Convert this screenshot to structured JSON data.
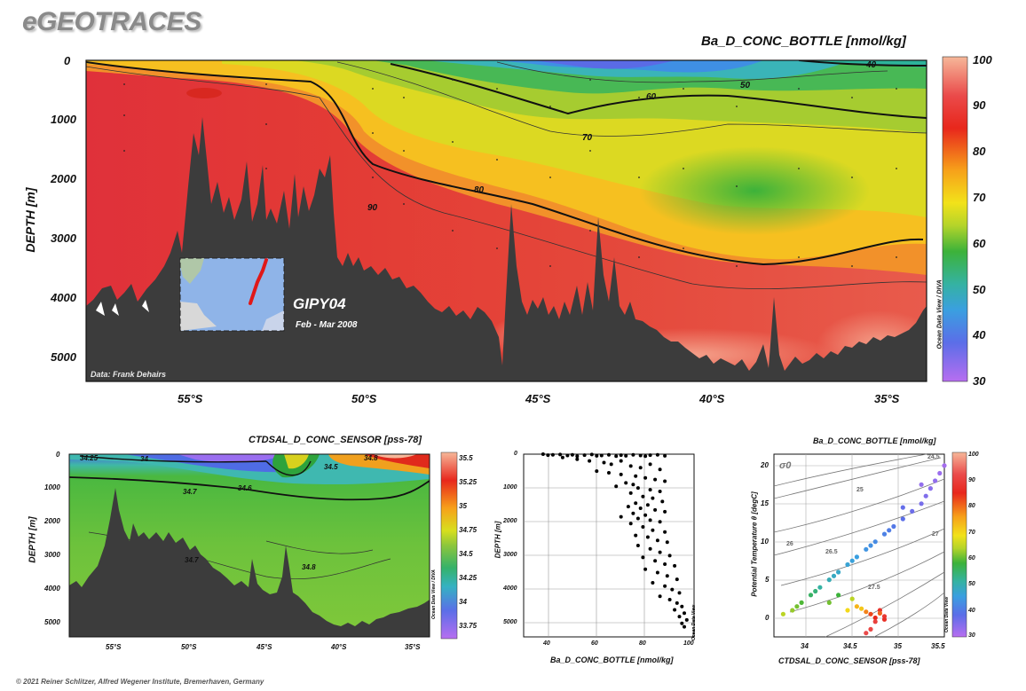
{
  "brand": "eGEOTRACES",
  "copyright": "© 2021 Reiner Schlitzer, Alfred Wegener Institute, Bremerhaven, Germany",
  "colors": {
    "land": "#3c3c3c",
    "contour": "#111111"
  },
  "chart_data": [
    {
      "type": "heatmap",
      "id": "main-section",
      "title": "Ba_D_CONC_BOTTLE [nmol/kg]",
      "ylabel": "DEPTH [m]",
      "x_ticks": [
        "55°S",
        "50°S",
        "45°S",
        "40°S",
        "35°S"
      ],
      "y_ticks": [
        "0",
        "1000",
        "2000",
        "3000",
        "4000",
        "5000"
      ],
      "y_range": [
        0,
        5400
      ],
      "colorbar_ticks": [
        "100",
        "90",
        "80",
        "70",
        "60",
        "50",
        "40",
        "30"
      ],
      "colorbar_range": [
        30,
        100
      ],
      "contour_labels": [
        "40",
        "50",
        "60",
        "70",
        "80",
        "90"
      ],
      "credit": "Data: Frank Dehairs",
      "watermark": "Ocean Data View / DIVA",
      "inset": {
        "title": "GIPY04",
        "subtitle": "Feb - Mar 2008"
      }
    },
    {
      "type": "heatmap",
      "id": "salinity-section",
      "title": "CTDSAL_D_CONC_SENSOR [pss-78]",
      "ylabel": "DEPTH [m]",
      "x_ticks": [
        "55°S",
        "50°S",
        "45°S",
        "40°S",
        "35°S"
      ],
      "y_ticks": [
        "0",
        "1000",
        "2000",
        "3000",
        "4000",
        "5000"
      ],
      "colorbar_ticks": [
        "35.5",
        "35.25",
        "35",
        "34.75",
        "34.5",
        "34.25",
        "34",
        "33.75"
      ],
      "colorbar_range": [
        33.7,
        35.55
      ],
      "contour_labels": [
        "34.25",
        "34",
        "34.8",
        "34.7",
        "34.5",
        "34.6",
        "34.7",
        "34.8"
      ],
      "watermark": "Ocean Data View / DIVA"
    },
    {
      "type": "scatter",
      "id": "profile",
      "xlabel": "Ba_D_CONC_BOTTLE [nmol/kg]",
      "ylabel": "DEPTH [m]",
      "xlim": [
        30,
        100
      ],
      "ylim": [
        5400,
        0
      ],
      "x_ticks": [
        "40",
        "60",
        "80",
        "100"
      ],
      "y_ticks": [
        "0",
        "1000",
        "2000",
        "3000",
        "4000",
        "5000"
      ],
      "watermark": "Ocean Data View",
      "points": [
        [
          38,
          0
        ],
        [
          40,
          30
        ],
        [
          42,
          20
        ],
        [
          45,
          10
        ],
        [
          48,
          40
        ],
        [
          50,
          20
        ],
        [
          52,
          60
        ],
        [
          55,
          30
        ],
        [
          58,
          10
        ],
        [
          60,
          50
        ],
        [
          62,
          40
        ],
        [
          65,
          20
        ],
        [
          68,
          60
        ],
        [
          70,
          30
        ],
        [
          72,
          50
        ],
        [
          75,
          20
        ],
        [
          78,
          40
        ],
        [
          80,
          60
        ],
        [
          82,
          30
        ],
        [
          85,
          20
        ],
        [
          88,
          50
        ],
        [
          46,
          100
        ],
        [
          52,
          150
        ],
        [
          57,
          200
        ],
        [
          63,
          250
        ],
        [
          66,
          300
        ],
        [
          70,
          200
        ],
        [
          74,
          350
        ],
        [
          78,
          400
        ],
        [
          82,
          300
        ],
        [
          86,
          450
        ],
        [
          60,
          500
        ],
        [
          65,
          550
        ],
        [
          70,
          600
        ],
        [
          76,
          650
        ],
        [
          80,
          700
        ],
        [
          84,
          750
        ],
        [
          88,
          800
        ],
        [
          72,
          850
        ],
        [
          75,
          900
        ],
        [
          68,
          950
        ],
        [
          77,
          1000
        ],
        [
          82,
          1050
        ],
        [
          86,
          1100
        ],
        [
          74,
          1150
        ],
        [
          79,
          1250
        ],
        [
          83,
          1300
        ],
        [
          87,
          1400
        ],
        [
          76,
          1450
        ],
        [
          81,
          1500
        ],
        [
          73,
          1550
        ],
        [
          78,
          1600
        ],
        [
          84,
          1650
        ],
        [
          88,
          1700
        ],
        [
          75,
          1750
        ],
        [
          80,
          1800
        ],
        [
          70,
          1850
        ],
        [
          77,
          1900
        ],
        [
          82,
          1950
        ],
        [
          86,
          2000
        ],
        [
          74,
          2050
        ],
        [
          79,
          2150
        ],
        [
          83,
          2250
        ],
        [
          88,
          2300
        ],
        [
          76,
          2400
        ],
        [
          81,
          2450
        ],
        [
          85,
          2550
        ],
        [
          89,
          2600
        ],
        [
          77,
          2700
        ],
        [
          82,
          2800
        ],
        [
          86,
          2900
        ],
        [
          90,
          3000
        ],
        [
          79,
          3050
        ],
        [
          84,
          3150
        ],
        [
          88,
          3250
        ],
        [
          92,
          3300
        ],
        [
          80,
          3400
        ],
        [
          85,
          3500
        ],
        [
          89,
          3600
        ],
        [
          93,
          3700
        ],
        [
          83,
          3800
        ],
        [
          88,
          3900
        ],
        [
          91,
          4000
        ],
        [
          94,
          4100
        ],
        [
          86,
          4200
        ],
        [
          90,
          4300
        ],
        [
          93,
          4400
        ],
        [
          95,
          4500
        ],
        [
          92,
          4600
        ],
        [
          96,
          4700
        ],
        [
          94,
          4800
        ],
        [
          97,
          4900
        ],
        [
          95,
          5000
        ],
        [
          96,
          5100
        ]
      ]
    },
    {
      "type": "scatter",
      "id": "ts-diagram",
      "title": "Ba_D_CONC_BOTTLE [nmol/kg]",
      "xlabel": "CTDSAL_D_CONC_SENSOR [pss-78]",
      "ylabel": "Potential Temperature θ [degC]",
      "density_label": "σ0",
      "xlim": [
        33.7,
        35.55
      ],
      "ylim": [
        -1.5,
        22.5
      ],
      "x_ticks": [
        "34",
        "34.5",
        "35",
        "35.5"
      ],
      "y_ticks": [
        "0",
        "5",
        "10",
        "15",
        "20"
      ],
      "isopycnal_labels": [
        "24.5",
        "25",
        "26",
        "26.5",
        "27",
        "27.5"
      ],
      "colorbar_ticks": [
        "100",
        "90",
        "80",
        "70",
        "60",
        "50",
        "40",
        "30"
      ],
      "colorbar_range": [
        30,
        100
      ],
      "watermark": "Ocean Data View",
      "points": [
        [
          35.55,
          21,
          32
        ],
        [
          35.5,
          20,
          33
        ],
        [
          35.45,
          19,
          34
        ],
        [
          35.4,
          18,
          35
        ],
        [
          35.35,
          17,
          36
        ],
        [
          35.3,
          16,
          37
        ],
        [
          35.2,
          15,
          38
        ],
        [
          35.1,
          14,
          40
        ],
        [
          35.0,
          13,
          42
        ],
        [
          34.9,
          12,
          44
        ],
        [
          34.8,
          11,
          46
        ],
        [
          34.7,
          10,
          48
        ],
        [
          34.6,
          9,
          50
        ],
        [
          34.5,
          8,
          52
        ],
        [
          34.4,
          7,
          54
        ],
        [
          34.3,
          6,
          57
        ],
        [
          34.2,
          5,
          60
        ],
        [
          34.1,
          4,
          63
        ],
        [
          34.0,
          3,
          66
        ],
        [
          33.9,
          2,
          70
        ],
        [
          33.8,
          1.5,
          72
        ],
        [
          34.3,
          3,
          68
        ],
        [
          34.5,
          2,
          76
        ],
        [
          34.6,
          2.5,
          80
        ],
        [
          34.7,
          1.8,
          84
        ],
        [
          34.75,
          1.5,
          88
        ],
        [
          34.8,
          1,
          90
        ],
        [
          34.85,
          2,
          93
        ],
        [
          34.9,
          1.2,
          95
        ],
        [
          34.8,
          0.5,
          97
        ],
        [
          34.75,
          -0.5,
          99
        ],
        [
          34.7,
          -1,
          100
        ],
        [
          35.3,
          18.5,
          34
        ],
        [
          35.1,
          15.5,
          39
        ],
        [
          34.95,
          12.5,
          43
        ],
        [
          34.75,
          10.5,
          47
        ],
        [
          34.55,
          8.5,
          51
        ],
        [
          34.35,
          6.5,
          55
        ],
        [
          34.15,
          4.5,
          62
        ],
        [
          33.95,
          2.5,
          68
        ],
        [
          34.4,
          4,
          65
        ],
        [
          34.55,
          3.5,
          72
        ],
        [
          34.65,
          2.2,
          78
        ],
        [
          34.85,
          1.6,
          86
        ],
        [
          34.9,
          0.8,
          92
        ]
      ]
    }
  ]
}
